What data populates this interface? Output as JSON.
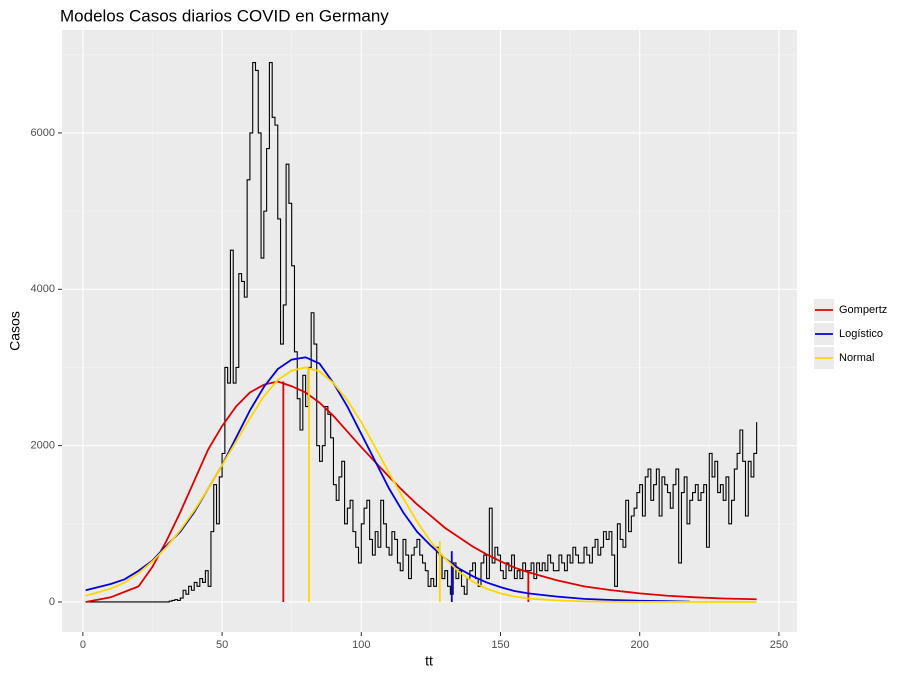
{
  "chart_data": {
    "type": "line",
    "title": "Modelos Casos diarios COVID en Germany",
    "xlabel": "tt",
    "ylabel": "Casos",
    "xlim": [
      -7.5,
      256.5
    ],
    "ylim": [
      -384,
      7317
    ],
    "xticks": [
      0,
      50,
      100,
      150,
      200,
      250
    ],
    "yticks": [
      0,
      2000,
      4000,
      6000
    ],
    "grid": true,
    "legend": "right",
    "cases": {
      "color": "#000000",
      "x": [
        1,
        2,
        3,
        4,
        5,
        6,
        7,
        8,
        9,
        10,
        11,
        12,
        13,
        14,
        15,
        16,
        17,
        18,
        19,
        20,
        21,
        22,
        23,
        24,
        25,
        26,
        27,
        28,
        29,
        30,
        31,
        32,
        33,
        34,
        35,
        36,
        37,
        38,
        39,
        40,
        41,
        42,
        43,
        44,
        45,
        46,
        47,
        48,
        49,
        50,
        51,
        52,
        53,
        54,
        55,
        56,
        57,
        58,
        59,
        60,
        61,
        62,
        63,
        64,
        65,
        66,
        67,
        68,
        69,
        70,
        71,
        72,
        73,
        74,
        75,
        76,
        77,
        78,
        79,
        80,
        81,
        82,
        83,
        84,
        85,
        86,
        87,
        88,
        89,
        90,
        91,
        92,
        93,
        94,
        95,
        96,
        97,
        98,
        99,
        100,
        101,
        102,
        103,
        104,
        105,
        106,
        107,
        108,
        109,
        110,
        111,
        112,
        113,
        114,
        115,
        116,
        117,
        118,
        119,
        120,
        121,
        122,
        123,
        124,
        125,
        126,
        127,
        128,
        129,
        130,
        131,
        132,
        133,
        134,
        135,
        136,
        137,
        138,
        139,
        140,
        141,
        142,
        143,
        144,
        145,
        146,
        147,
        148,
        149,
        150,
        151,
        152,
        153,
        154,
        155,
        156,
        157,
        158,
        159,
        160,
        161,
        162,
        163,
        164,
        165,
        166,
        167,
        168,
        169,
        170,
        171,
        172,
        173,
        174,
        175,
        176,
        177,
        178,
        179,
        180,
        181,
        182,
        183,
        184,
        185,
        186,
        187,
        188,
        189,
        190,
        191,
        192,
        193,
        194,
        195,
        196,
        197,
        198,
        199,
        200,
        201,
        202,
        203,
        204,
        205,
        206,
        207,
        208,
        209,
        210,
        211,
        212,
        213,
        214,
        215,
        216,
        217,
        218,
        219,
        220,
        221,
        222,
        223,
        224,
        225,
        226,
        227,
        228,
        229,
        230,
        231,
        232,
        233,
        234,
        235,
        236,
        237,
        238,
        239,
        240,
        241,
        242
      ],
      "values": [
        0,
        0,
        0,
        0,
        0,
        0,
        0,
        0,
        0,
        0,
        0,
        0,
        0,
        0,
        0,
        0,
        0,
        0,
        0,
        0,
        0,
        0,
        0,
        0,
        0,
        0,
        0,
        0,
        0,
        0,
        10,
        20,
        30,
        20,
        50,
        150,
        100,
        200,
        150,
        250,
        200,
        300,
        250,
        400,
        200,
        900,
        1500,
        1000,
        1600,
        1900,
        3000,
        2800,
        4500,
        2800,
        3000,
        4200,
        4100,
        3900,
        5400,
        6000,
        6900,
        6800,
        6000,
        4400,
        5000,
        5800,
        6900,
        6200,
        6100,
        4900,
        3300,
        3800,
        5600,
        5100,
        4300,
        3200,
        2600,
        2200,
        2900,
        2500,
        3000,
        3700,
        3300,
        2000,
        1800,
        2000,
        2500,
        2400,
        2100,
        1500,
        1300,
        1600,
        1800,
        1000,
        1200,
        1300,
        900,
        700,
        500,
        1000,
        1200,
        1300,
        800,
        600,
        900,
        700,
        1300,
        1000,
        700,
        600,
        900,
        800,
        500,
        400,
        800,
        600,
        300,
        600,
        700,
        800,
        600,
        500,
        400,
        200,
        300,
        200,
        700,
        600,
        300,
        400,
        200,
        100,
        500,
        300,
        400,
        200,
        100,
        300,
        400,
        500,
        300,
        200,
        500,
        600,
        300,
        1200,
        500,
        700,
        600,
        400,
        300,
        500,
        400,
        600,
        300,
        400,
        300,
        500,
        400,
        400,
        500,
        300,
        500,
        400,
        500,
        400,
        600,
        500,
        400,
        400,
        600,
        500,
        400,
        600,
        500,
        700,
        600,
        500,
        500,
        700,
        600,
        500,
        700,
        800,
        600,
        700,
        900,
        800,
        900,
        600,
        200,
        1000,
        800,
        700,
        1300,
        900,
        1100,
        1200,
        1400,
        1500,
        1100,
        1600,
        1700,
        1300,
        1500,
        1700,
        1100,
        1600,
        1500,
        1400,
        1200,
        1500,
        1700,
        500,
        1400,
        1600,
        1000,
        1300,
        1400,
        1500,
        1300,
        1400,
        1500,
        700,
        1900,
        1600,
        1800,
        1400,
        1500,
        1300,
        1600,
        1000,
        1300,
        1700,
        1900,
        2200,
        1800,
        1100,
        1800,
        1600,
        1900,
        2300
      ]
    },
    "series": [
      {
        "name": "Gompertz",
        "color": "#e00000",
        "x": [
          1,
          10,
          20,
          25,
          30,
          35,
          40,
          45,
          50,
          55,
          60,
          65,
          70,
          75,
          80,
          85,
          90,
          95,
          100,
          105,
          110,
          115,
          120,
          125,
          130,
          135,
          140,
          145,
          150,
          155,
          160,
          170,
          180,
          190,
          200,
          210,
          220,
          230,
          242
        ],
        "values": [
          0,
          60,
          200,
          450,
          780,
          1150,
          1550,
          1950,
          2250,
          2500,
          2680,
          2780,
          2820,
          2760,
          2680,
          2550,
          2380,
          2180,
          1980,
          1790,
          1600,
          1420,
          1250,
          1100,
          950,
          830,
          710,
          610,
          520,
          440,
          380,
          280,
          200,
          150,
          110,
          80,
          60,
          45,
          35
        ],
        "drops": [
          {
            "x": 72,
            "y": 2820
          },
          {
            "x": 160,
            "y": 400
          }
        ]
      },
      {
        "name": "Logístico",
        "color": "#0000e0",
        "x": [
          1,
          10,
          15,
          20,
          25,
          30,
          35,
          40,
          45,
          50,
          55,
          60,
          65,
          70,
          75,
          80,
          85,
          90,
          95,
          100,
          105,
          110,
          115,
          120,
          125,
          130,
          135,
          140,
          145,
          150,
          155,
          160,
          170,
          180,
          190,
          200,
          210,
          218
        ],
        "values": [
          150,
          230,
          290,
          400,
          530,
          720,
          900,
          1150,
          1450,
          1750,
          2100,
          2450,
          2750,
          2980,
          3100,
          3130,
          3050,
          2800,
          2500,
          2150,
          1800,
          1450,
          1150,
          900,
          720,
          560,
          430,
          330,
          250,
          190,
          140,
          110,
          70,
          40,
          25,
          15,
          10,
          5
        ],
        "drops": [
          {
            "x": 132.5,
            "y": 650
          }
        ]
      },
      {
        "name": "Normal",
        "color": "#ffd700",
        "x": [
          1,
          10,
          15,
          20,
          25,
          30,
          35,
          40,
          45,
          50,
          55,
          60,
          65,
          70,
          75,
          80,
          85,
          90,
          95,
          100,
          105,
          110,
          115,
          120,
          125,
          130,
          135,
          140,
          145,
          150,
          155,
          160,
          170,
          180,
          190,
          200,
          242
        ],
        "values": [
          80,
          170,
          250,
          370,
          520,
          700,
          920,
          1170,
          1450,
          1750,
          2050,
          2350,
          2630,
          2840,
          2960,
          3000,
          2950,
          2800,
          2580,
          2300,
          1980,
          1650,
          1330,
          1030,
          770,
          560,
          390,
          260,
          170,
          110,
          70,
          45,
          20,
          8,
          3,
          1,
          0
        ],
        "drops": [
          {
            "x": 81.2,
            "y": 3000
          },
          {
            "x": 128.2,
            "y": 780
          }
        ]
      }
    ]
  }
}
